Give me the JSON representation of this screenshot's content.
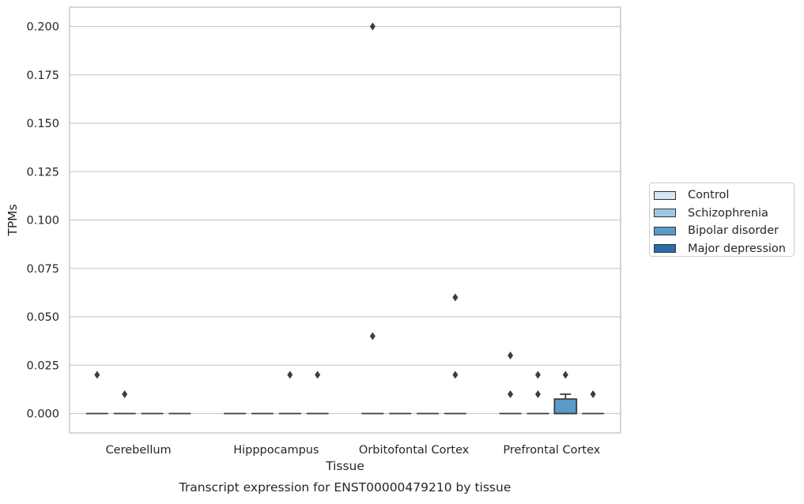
{
  "chart_data": {
    "type": "box",
    "title": "",
    "caption": "Transcript expression for ENST00000479210 by tissue",
    "xlabel": "Tissue",
    "ylabel": "TPMs",
    "ylim": [
      -0.01,
      0.21
    ],
    "yticks": [
      0.0,
      0.025,
      0.05,
      0.075,
      0.1,
      0.125,
      0.15,
      0.175,
      0.2
    ],
    "ytick_labels": [
      "0.000",
      "0.025",
      "0.050",
      "0.075",
      "0.100",
      "0.125",
      "0.150",
      "0.175",
      "0.200"
    ],
    "grid": true,
    "legend_position": "right",
    "categories": [
      "Cerebellum",
      "Hipppocampus",
      "Orbitofontal Cortex",
      "Prefrontal Cortex"
    ],
    "series": [
      {
        "name": "Control",
        "color": "#d6e6f4",
        "boxes": [
          {
            "q1": 0,
            "median": 0,
            "q3": 0,
            "whisker_low": 0,
            "whisker_high": 0,
            "outliers": [
              0.02
            ]
          },
          {
            "q1": 0,
            "median": 0,
            "q3": 0,
            "whisker_low": 0,
            "whisker_high": 0,
            "outliers": []
          },
          {
            "q1": 0,
            "median": 0,
            "q3": 0,
            "whisker_low": 0,
            "whisker_high": 0,
            "outliers": [
              0.2,
              0.04
            ]
          },
          {
            "q1": 0,
            "median": 0,
            "q3": 0,
            "whisker_low": 0,
            "whisker_high": 0,
            "outliers": [
              0.03,
              0.01
            ]
          }
        ]
      },
      {
        "name": "Schizophrenia",
        "color": "#9ecae1",
        "boxes": [
          {
            "q1": 0,
            "median": 0,
            "q3": 0,
            "whisker_low": 0,
            "whisker_high": 0,
            "outliers": [
              0.01
            ]
          },
          {
            "q1": 0,
            "median": 0,
            "q3": 0,
            "whisker_low": 0,
            "whisker_high": 0,
            "outliers": []
          },
          {
            "q1": 0,
            "median": 0,
            "q3": 0,
            "whisker_low": 0,
            "whisker_high": 0,
            "outliers": []
          },
          {
            "q1": 0,
            "median": 0,
            "q3": 0,
            "whisker_low": 0,
            "whisker_high": 0,
            "outliers": [
              0.02,
              0.01
            ]
          }
        ]
      },
      {
        "name": "Bipolar disorder",
        "color": "#5a9ac8",
        "boxes": [
          {
            "q1": 0,
            "median": 0,
            "q3": 0,
            "whisker_low": 0,
            "whisker_high": 0,
            "outliers": []
          },
          {
            "q1": 0,
            "median": 0,
            "q3": 0,
            "whisker_low": 0,
            "whisker_high": 0,
            "outliers": [
              0.02
            ]
          },
          {
            "q1": 0,
            "median": 0,
            "q3": 0,
            "whisker_low": 0,
            "whisker_high": 0,
            "outliers": []
          },
          {
            "q1": 0,
            "median": 0,
            "q3": 0.0075,
            "whisker_low": 0,
            "whisker_high": 0.01,
            "outliers": [
              0.02
            ]
          }
        ]
      },
      {
        "name": "Major depression",
        "color": "#2b6da8",
        "boxes": [
          {
            "q1": 0,
            "median": 0,
            "q3": 0,
            "whisker_low": 0,
            "whisker_high": 0,
            "outliers": []
          },
          {
            "q1": 0,
            "median": 0,
            "q3": 0,
            "whisker_low": 0,
            "whisker_high": 0,
            "outliers": [
              0.02
            ]
          },
          {
            "q1": 0,
            "median": 0,
            "q3": 0,
            "whisker_low": 0,
            "whisker_high": 0,
            "outliers": [
              0.06,
              0.02
            ]
          },
          {
            "q1": 0,
            "median": 0,
            "q3": 0,
            "whisker_low": 0,
            "whisker_high": 0,
            "outliers": [
              0.01
            ]
          }
        ]
      }
    ]
  }
}
